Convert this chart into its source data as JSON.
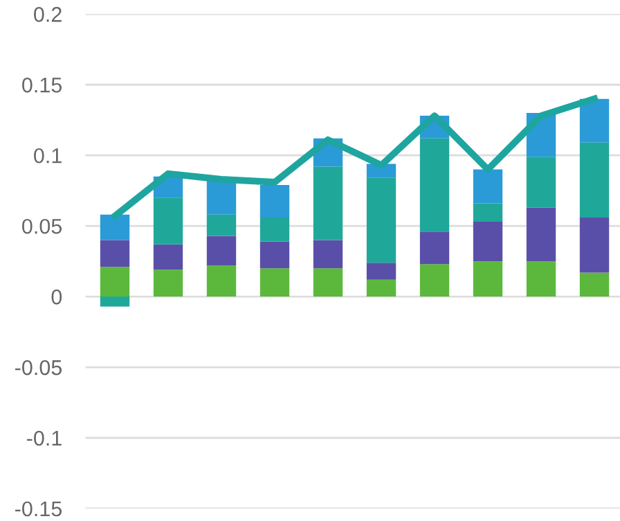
{
  "chart_data": {
    "type": "bar",
    "stacked": true,
    "categories": [
      null,
      null,
      null,
      null,
      null,
      null,
      null,
      null,
      null,
      null
    ],
    "series": [
      {
        "color": "#5cb83c",
        "values": [
          0.021,
          0.019,
          0.022,
          0.02,
          0.02,
          0.012,
          0.023,
          0.025,
          0.025,
          0.017
        ]
      },
      {
        "color": "#5a4fa8",
        "values": [
          0.019,
          0.018,
          0.021,
          0.019,
          0.02,
          0.012,
          0.023,
          0.028,
          0.038,
          0.039
        ]
      },
      {
        "color": "#1fa89a",
        "values": [
          -0.007,
          0.033,
          0.015,
          0.017,
          0.052,
          0.06,
          0.066,
          0.013,
          0.036,
          0.053
        ]
      },
      {
        "color": "#2a9bd6",
        "values": [
          0.018,
          0.015,
          0.026,
          0.023,
          0.02,
          0.01,
          0.016,
          0.024,
          0.031,
          0.031
        ]
      },
      {
        "type": "line",
        "color": "#1fa5a0",
        "values": [
          0.057,
          0.087,
          0.083,
          0.081,
          0.111,
          0.093,
          0.128,
          0.09,
          0.128,
          0.14
        ]
      }
    ],
    "ylim": [
      -0.15,
      0.2
    ],
    "yticks": [
      -0.15,
      -0.1,
      -0.05,
      0,
      0.05,
      0.1,
      0.15,
      0.2
    ],
    "grid": "y",
    "tick_labels": "y"
  }
}
